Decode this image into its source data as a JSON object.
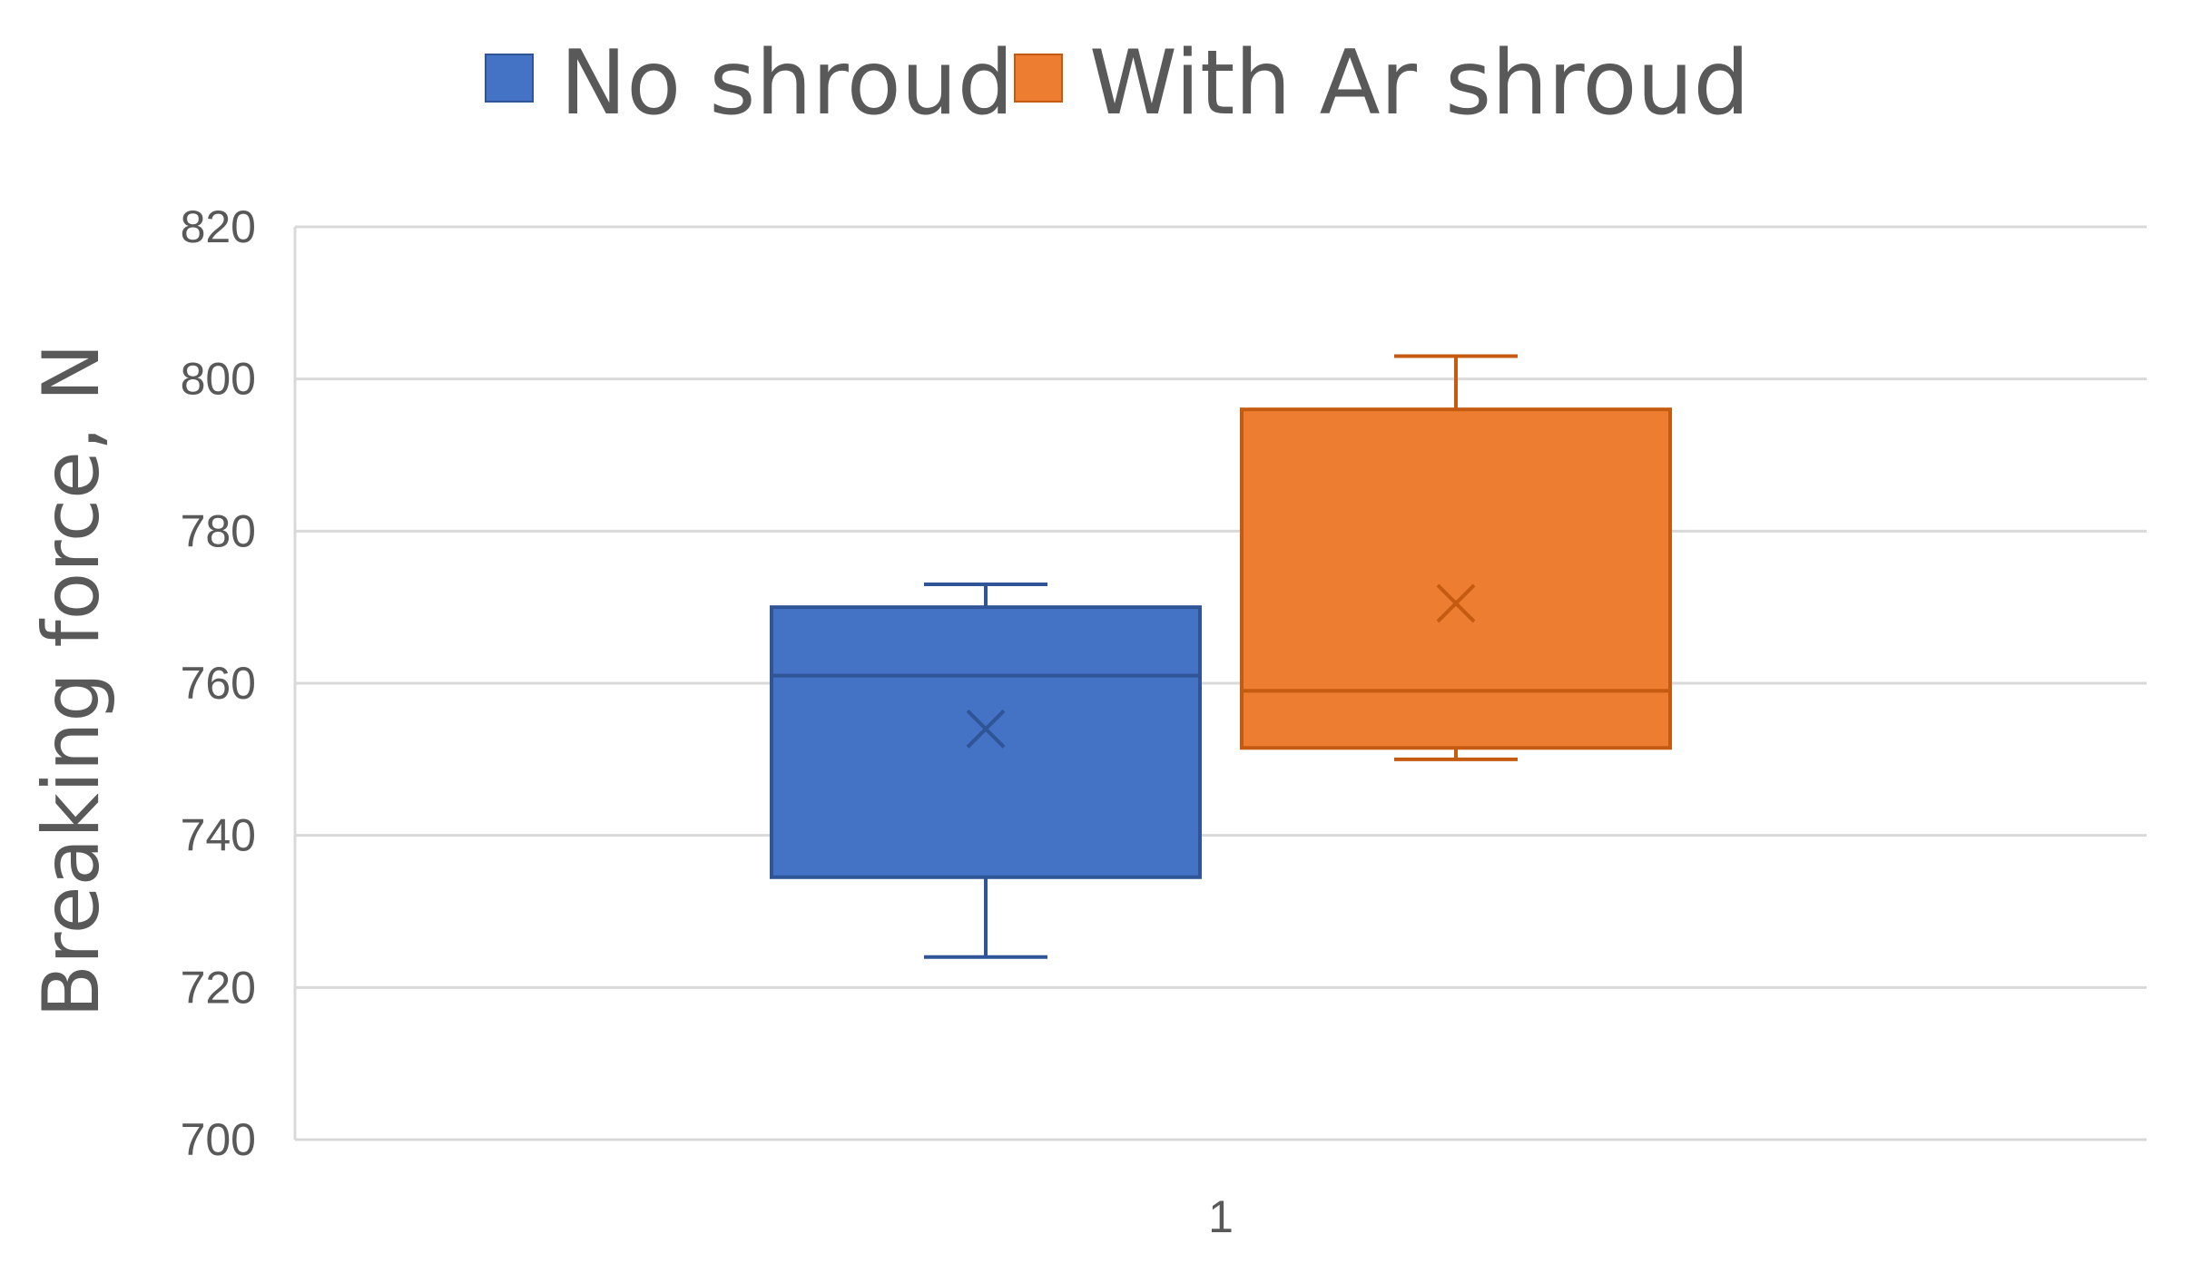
{
  "chart_data": {
    "type": "box",
    "title": "",
    "xlabel": "",
    "ylabel": "Breaking force, N",
    "ylim": [
      700,
      820
    ],
    "yticks": [
      700,
      720,
      740,
      760,
      780,
      800,
      820
    ],
    "categories": [
      "1"
    ],
    "grid": true,
    "legend_position": "top-center",
    "series": [
      {
        "name": "No shroud",
        "color": "#4472c4",
        "edge_color": "#2f5597",
        "min": 724,
        "q1": 734.5,
        "median": 761,
        "q3": 770,
        "max": 773,
        "mean": 754
      },
      {
        "name": "With Ar shroud",
        "color": "#ed7d31",
        "edge_color": "#c55a11",
        "min": 750,
        "q1": 751.5,
        "median": 759,
        "q3": 796,
        "max": 803,
        "mean": 770.5
      }
    ]
  }
}
